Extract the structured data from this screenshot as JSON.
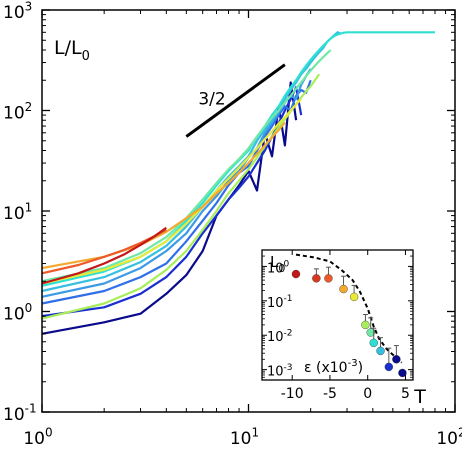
{
  "chart_data": [
    {
      "type": "line",
      "log_scale": {
        "x": true,
        "y": true
      },
      "xlabel": "T",
      "ylabel": "L/L0",
      "ylabel_parts": {
        "base": "L/L",
        "sub": "0"
      },
      "xlim": [
        1,
        100
      ],
      "ylim": [
        0.1,
        1000
      ],
      "xticks": [
        {
          "base": "10",
          "exp": "0",
          "value": 1
        },
        {
          "base": "10",
          "exp": "1",
          "value": 10
        },
        {
          "base": "10",
          "exp": "2",
          "value": 100
        }
      ],
      "yticks": [
        {
          "base": "10",
          "exp": "-1",
          "value": 0.1
        },
        {
          "base": "10",
          "exp": "0",
          "value": 1
        },
        {
          "base": "10",
          "exp": "1",
          "value": 10
        },
        {
          "base": "10",
          "exp": "2",
          "value": 100
        },
        {
          "base": "10",
          "exp": "3",
          "value": 1000
        }
      ],
      "grid": false,
      "legend": "none",
      "annotation": {
        "label": "3/2",
        "slope": 1.5,
        "x_range": [
          5,
          15
        ],
        "y_start": 55
      },
      "series": [
        {
          "color": "#0a0a8c",
          "x": [
            1,
            2,
            3,
            4,
            5,
            6,
            7,
            8,
            9,
            10,
            11,
            12,
            13,
            14,
            15,
            16,
            17
          ],
          "y": [
            0.6,
            0.78,
            0.95,
            1.5,
            2.3,
            4,
            9,
            13,
            18,
            25,
            16,
            60,
            35,
            110,
            45,
            190,
            80
          ]
        },
        {
          "color": "#1a2fd0",
          "x": [
            1,
            2,
            3,
            4,
            5,
            6,
            7,
            8,
            9,
            10,
            11,
            12,
            13,
            14,
            15,
            16,
            17,
            18
          ],
          "y": [
            0.9,
            1.1,
            1.5,
            2.2,
            3.5,
            6,
            9,
            13,
            17,
            22,
            30,
            40,
            55,
            75,
            100,
            130,
            170,
            90
          ]
        },
        {
          "color": "#2f6fe8",
          "x": [
            1,
            2,
            3,
            4,
            5,
            6,
            7,
            8,
            9,
            10,
            11,
            12,
            13,
            14,
            15,
            16,
            17,
            18,
            19,
            20
          ],
          "y": [
            1.2,
            1.6,
            2.2,
            3,
            5,
            8,
            12,
            18,
            24,
            28,
            40,
            55,
            70,
            90,
            110,
            100,
            140,
            160,
            150,
            200
          ]
        },
        {
          "color": "#3d9be6",
          "x": [
            1,
            2,
            3,
            4,
            5,
            6,
            7,
            8,
            9,
            10,
            11,
            12,
            13,
            14,
            15,
            16,
            17,
            18,
            19,
            20
          ],
          "y": [
            1.4,
            1.9,
            2.7,
            4,
            6,
            10,
            14,
            20,
            25,
            34,
            42,
            60,
            75,
            95,
            120,
            140,
            130,
            180,
            220,
            260
          ]
        },
        {
          "color": "#36bfe0",
          "x": [
            1,
            2,
            3,
            4,
            5,
            6,
            7,
            8,
            9,
            10,
            11,
            12,
            13,
            14,
            15,
            16,
            17,
            18,
            19,
            20,
            21,
            22,
            23,
            24,
            25,
            26,
            27,
            28
          ],
          "y": [
            1.6,
            2.2,
            3.1,
            4.5,
            7,
            11,
            16,
            22,
            28,
            35,
            50,
            65,
            80,
            100,
            130,
            160,
            190,
            230,
            260,
            300,
            340,
            380,
            420,
            480,
            520,
            560,
            600,
            580
          ]
        },
        {
          "color": "#2ee0d4",
          "x": [
            1,
            2,
            3,
            4,
            5,
            6,
            7,
            8,
            9,
            10,
            11,
            12,
            13,
            14,
            15,
            16,
            17,
            18,
            19,
            20,
            21,
            22,
            23,
            24,
            25,
            26,
            27,
            28,
            29,
            30,
            31,
            32,
            33,
            34,
            35,
            36,
            37,
            38,
            39,
            40,
            41,
            42,
            43,
            44,
            45,
            46,
            47,
            48,
            49,
            50,
            51,
            52,
            53,
            54,
            55,
            56,
            57,
            58,
            59,
            60,
            61,
            62,
            63,
            64,
            65,
            66,
            67,
            68,
            69,
            70,
            71,
            72,
            73,
            74,
            75,
            76,
            77,
            78,
            79,
            80
          ],
          "y": [
            1.8,
            2.5,
            3.5,
            5,
            8,
            12,
            18,
            25,
            32,
            40,
            55,
            70,
            90,
            110,
            140,
            170,
            200,
            240,
            280,
            320,
            360,
            400,
            440,
            480,
            520,
            550,
            570,
            585,
            595,
            600,
            600,
            600,
            600,
            600,
            600,
            600,
            600,
            600,
            600,
            600,
            600,
            600,
            600,
            600,
            600,
            600,
            600,
            600,
            600,
            600,
            600,
            600,
            600,
            600,
            600,
            600,
            600,
            600,
            600,
            600,
            600,
            600,
            600,
            600,
            600,
            600,
            600,
            600,
            600,
            600,
            600,
            600,
            600,
            600,
            600,
            600,
            600,
            600,
            600,
            600
          ]
        },
        {
          "color": "#6fe8a6",
          "x": [
            1,
            2,
            3,
            4,
            5,
            6,
            7,
            8,
            9,
            10,
            11,
            12,
            13,
            14,
            15,
            16,
            17,
            18,
            19,
            20,
            21,
            22,
            23,
            24,
            25
          ],
          "y": [
            2,
            2.7,
            3.8,
            5.5,
            8.5,
            13,
            19,
            26,
            33,
            42,
            55,
            70,
            85,
            100,
            120,
            140,
            165,
            190,
            220,
            250,
            280,
            310,
            340,
            370,
            400
          ]
        },
        {
          "color": "#a8ee5a",
          "x": [
            1,
            2,
            3,
            4,
            5,
            6,
            7,
            8,
            9,
            10,
            11,
            12,
            13,
            14,
            15,
            16,
            17,
            18,
            19,
            20,
            21,
            22
          ],
          "y": [
            0.85,
            1.2,
            1.7,
            2.6,
            4,
            6.5,
            10,
            15,
            20,
            26,
            34,
            44,
            55,
            68,
            82,
            98,
            115,
            135,
            155,
            175,
            200,
            230
          ]
        },
        {
          "color": "#e6ea3a",
          "x": [
            1,
            2,
            3,
            4,
            5,
            6,
            7,
            8,
            9,
            10,
            11,
            12,
            13,
            14,
            15,
            16,
            17,
            18
          ],
          "y": [
            1.9,
            2.6,
            3.5,
            5,
            7.5,
            11,
            16,
            21,
            27,
            34,
            42,
            52,
            62,
            74,
            86,
            100,
            115,
            130
          ]
        },
        {
          "color": "#f2a92e",
          "x": [
            1,
            2,
            3,
            4,
            5,
            6,
            7,
            8,
            9,
            10,
            11,
            12,
            13,
            14,
            15
          ],
          "y": [
            2.7,
            3.5,
            4.6,
            6.2,
            8.5,
            11,
            15,
            19,
            24,
            30,
            37,
            45,
            54,
            64,
            76
          ]
        },
        {
          "color": "#ec5a2a",
          "x": [
            1,
            1.5,
            2,
            2.5,
            3,
            3.5,
            4
          ],
          "y": [
            2.4,
            2.9,
            3.5,
            4.1,
            4.8,
            5.6,
            6.5
          ]
        },
        {
          "color": "#c41818",
          "x": [
            1,
            1.5,
            2,
            2.5,
            3,
            3.5,
            4
          ],
          "y": [
            1.9,
            2.4,
            3,
            3.7,
            4.6,
            5.6,
            6.8
          ]
        }
      ]
    },
    {
      "type": "scatter",
      "role": "inset",
      "log_scale": {
        "x": false,
        "y": true
      },
      "xlabel": "ε (x10-3)",
      "xlabel_parts": {
        "main": "ε (x10",
        "sup": "-3",
        "tail": ")"
      },
      "ylabel": "L0",
      "ylabel_parts": {
        "base": "L",
        "sub": "0"
      },
      "xlim": [
        -14,
        6
      ],
      "ylim": [
        0.0005,
        3
      ],
      "xticks": [
        {
          "label": "-10",
          "value": -10
        },
        {
          "label": "-5",
          "value": -5
        },
        {
          "label": "0",
          "value": 0
        },
        {
          "label": "5",
          "value": 5
        }
      ],
      "yticks": [
        {
          "base": "10",
          "exp": "0",
          "value": 1
        },
        {
          "base": "10",
          "exp": "-1",
          "value": 0.1
        },
        {
          "base": "10",
          "exp": "-2",
          "value": 0.01
        },
        {
          "base": "10",
          "exp": "-3",
          "value": 0.001
        }
      ],
      "grid": false,
      "legend": "none",
      "points": [
        {
          "x": -9.5,
          "y": 0.6,
          "err": 0,
          "color": "#c41818"
        },
        {
          "x": -6.8,
          "y": 0.45,
          "err": 0.4,
          "color": "#d83a1f"
        },
        {
          "x": -5.2,
          "y": 0.45,
          "err": 0.5,
          "color": "#ec5a2a"
        },
        {
          "x": -3.2,
          "y": 0.22,
          "err": 0.3,
          "color": "#f2a92e"
        },
        {
          "x": -1.8,
          "y": 0.13,
          "err": 0.15,
          "color": "#e6ea3a"
        },
        {
          "x": -0.3,
          "y": 0.02,
          "err": 0.02,
          "color": "#a8ee5a"
        },
        {
          "x": 0.4,
          "y": 0.012,
          "err": 0.02,
          "color": "#6fe8a6"
        },
        {
          "x": 0.8,
          "y": 0.006,
          "err": 0.01,
          "color": "#2ee0d4"
        },
        {
          "x": 1.7,
          "y": 0.0035,
          "err": 0.005,
          "color": "#36bfe0"
        },
        {
          "x": 2.8,
          "y": 0.0012,
          "err": 0.003,
          "color": "#1a2fd0"
        },
        {
          "x": 3.8,
          "y": 0.002,
          "err": 0.003,
          "color": "#0a0a8c"
        },
        {
          "x": 4.6,
          "y": 0.0008,
          "err": 0,
          "color": "#0a0a8c"
        }
      ],
      "reference_line": {
        "style": "dashed",
        "x": [
          -9.5,
          -7,
          -5,
          -3.5,
          -2,
          -1,
          0,
          0.8,
          1.5,
          2.5,
          3.5,
          4.5
        ],
        "y": [
          2.2,
          1.8,
          1.4,
          0.8,
          0.4,
          0.18,
          0.06,
          0.018,
          0.008,
          0.004,
          0.0025,
          0.0016
        ]
      }
    }
  ]
}
